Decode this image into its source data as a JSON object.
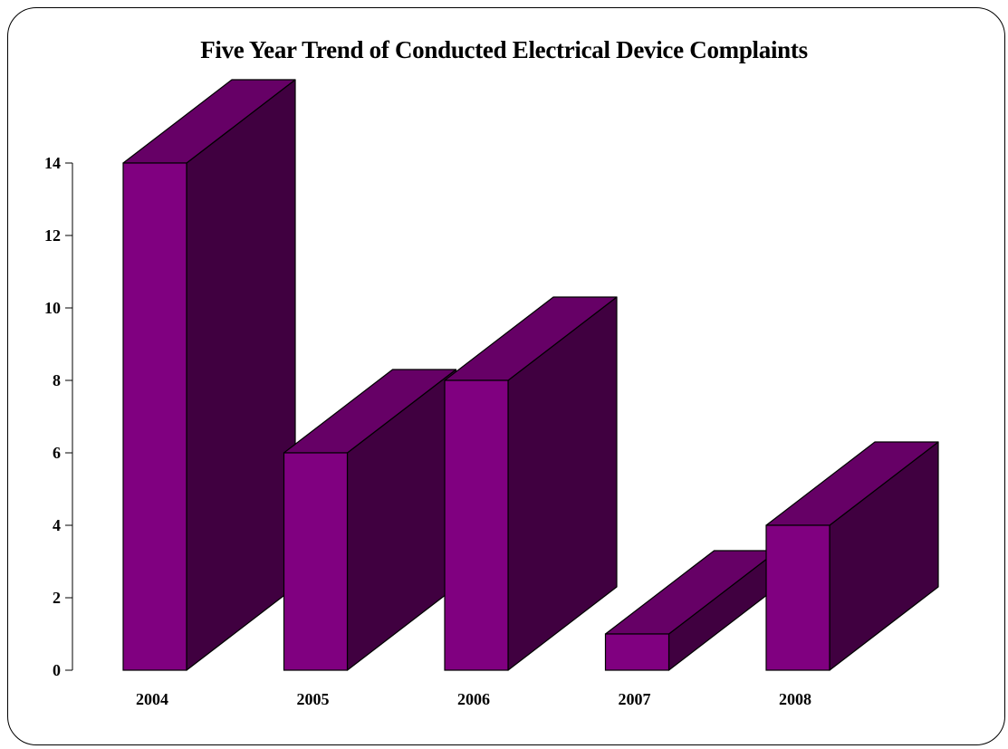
{
  "chart_data": {
    "type": "bar",
    "title": "Five Year Trend of Conducted Electrical Device Complaints",
    "categories": [
      "2004",
      "2005",
      "2006",
      "2007",
      "2008"
    ],
    "values": [
      14,
      6,
      8,
      1,
      4
    ],
    "ylim": [
      0,
      14
    ],
    "yticks": [
      0,
      2,
      4,
      6,
      8,
      10,
      12,
      14
    ],
    "xlabel": "",
    "ylabel": "",
    "grid": false,
    "three_d": true,
    "colors": {
      "front": "#800080",
      "top": "#660066",
      "side": "#400040",
      "edge": "#000000"
    }
  }
}
